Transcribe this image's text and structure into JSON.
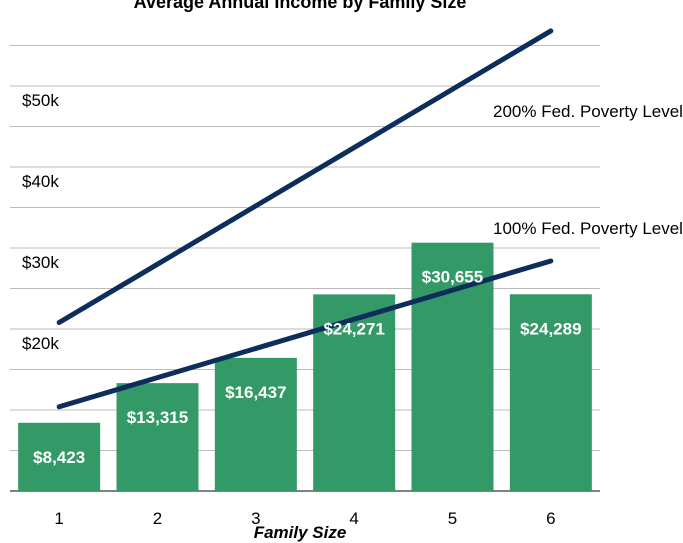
{
  "chart_data": {
    "type": "bar",
    "title": "Average Annual Income by Family Size",
    "x_label": "Family Size",
    "categories": [
      "1",
      "2",
      "3",
      "4",
      "5",
      "6"
    ],
    "values": [
      8423,
      13315,
      16437,
      24271,
      30655,
      24289
    ],
    "value_labels": [
      "$8,423",
      "$13,315",
      "$16,437",
      "$24,271",
      "$30,655",
      "$24,289"
    ],
    "color": "#339966",
    "lines": [
      {
        "name": "200% Fed. Poverty Level",
        "color": "#0d2d5a",
        "values": [
          20800,
          28000,
          35200,
          42400,
          49600,
          56800
        ]
      },
      {
        "name": "100% Fed. Poverty Level",
        "color": "#0d2d5a",
        "values": [
          10400,
          14000,
          17600,
          21200,
          24800,
          28400
        ]
      }
    ],
    "ylim": [
      0,
      60000
    ],
    "yticks": [
      {
        "value": 20000,
        "label": "$20k"
      },
      {
        "value": 30000,
        "label": "$30k"
      },
      {
        "value": 40000,
        "label": "$40k"
      },
      {
        "value": 50000,
        "label": "$50k"
      }
    ],
    "minor_yticks": [
      0,
      5000,
      10000,
      15000,
      20000,
      25000,
      30000,
      35000,
      40000,
      45000,
      50000,
      55000
    ],
    "grid": true
  }
}
